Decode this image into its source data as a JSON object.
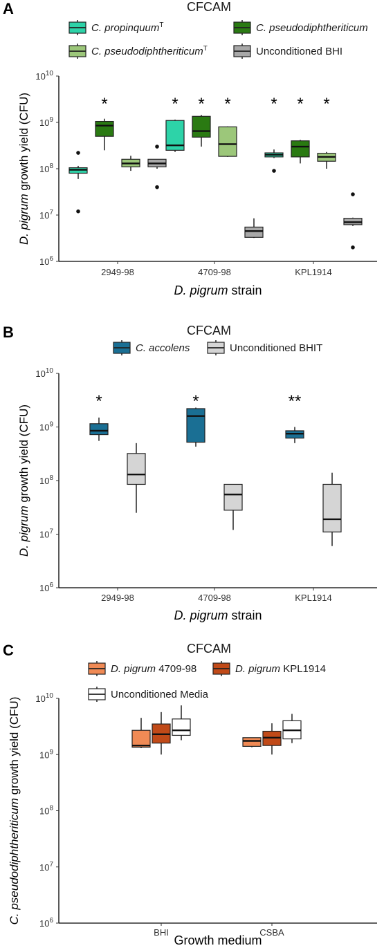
{
  "chart_data": [
    {
      "panel": "A",
      "type": "box",
      "legend_title": "CFCAM",
      "legend": [
        {
          "name": "C. propinquum",
          "italic": "C. propinquum",
          "plain": "",
          "sup": "T",
          "color": "#2dd3a8"
        },
        {
          "name": "C. pseudodiphtheriticum",
          "italic": "C. pseudodiphtheriticum",
          "plain": "",
          "sup": "",
          "color": "#2a7a12"
        },
        {
          "name": "C. pseudodiphtheriticum",
          "italic": "C. pseudodiphtheriticum",
          "plain": "",
          "sup": "T",
          "color": "#9cc77a"
        },
        {
          "name": "Unconditioned BHI",
          "italic": "",
          "plain": "Unconditioned BHI",
          "sup": "",
          "color": "#a8a8a8"
        }
      ],
      "y_scale": "log10",
      "ylim": [
        1000000,
        10000000000
      ],
      "y_ticks": [
        {
          "base": "10",
          "exp": "10"
        },
        {
          "base": "10",
          "exp": "9"
        },
        {
          "base": "10",
          "exp": "8"
        },
        {
          "base": "10",
          "exp": "7"
        },
        {
          "base": "10",
          "exp": "6"
        }
      ],
      "ylabel_italic": "D. pigrum",
      "ylabel_plain": " growth yield (CFU)",
      "xlabel_italic": "D. pigrum",
      "xlabel_plain": " strain",
      "categories": [
        "2949-98",
        "4709-98",
        "KPL1914"
      ],
      "boxes": [
        [
          {
            "color": "#2dd3a8",
            "lw": 60000000,
            "q1": 80000000,
            "med": 95000000,
            "q3": 105000000,
            "hw": 115000000,
            "outliers": [
              12000000,
              220000000
            ]
          },
          {
            "color": "#2a7a12",
            "lw": 250000000,
            "q1": 500000000,
            "med": 850000000,
            "q3": 1050000000,
            "hw": 1200000000,
            "outliers": []
          },
          {
            "color": "#9cc77a",
            "lw": 90000000,
            "q1": 110000000,
            "med": 130000000,
            "q3": 160000000,
            "hw": 190000000,
            "outliers": []
          },
          {
            "color": "#a8a8a8",
            "lw": 100000000,
            "q1": 110000000,
            "med": 130000000,
            "q3": 160000000,
            "hw": 160000000,
            "outliers": [
              40000000,
              300000000
            ]
          }
        ],
        [
          {
            "color": "#2dd3a8",
            "lw": 230000000,
            "q1": 250000000,
            "med": 320000000,
            "q3": 1100000000,
            "hw": 1150000000,
            "outliers": []
          },
          {
            "color": "#2a7a12",
            "lw": 300000000,
            "q1": 480000000,
            "med": 650000000,
            "q3": 1350000000,
            "hw": 1450000000,
            "outliers": []
          },
          {
            "color": "#9cc77a",
            "lw": 180000000,
            "q1": 185000000,
            "med": 340000000,
            "q3": 800000000,
            "hw": 820000000,
            "outliers": []
          },
          {
            "color": "#a8a8a8",
            "lw": 3200000,
            "q1": 3300000,
            "med": 4500000,
            "q3": 5500000,
            "hw": 8500000,
            "outliers": []
          }
        ],
        [
          {
            "color": "#2dd3a8",
            "lw": 170000000,
            "q1": 180000000,
            "med": 200000000,
            "q3": 220000000,
            "hw": 260000000,
            "outliers": [
              90000000
            ]
          },
          {
            "color": "#2a7a12",
            "lw": 130000000,
            "q1": 180000000,
            "med": 300000000,
            "q3": 400000000,
            "hw": 420000000,
            "outliers": []
          },
          {
            "color": "#9cc77a",
            "lw": 100000000,
            "q1": 145000000,
            "med": 180000000,
            "q3": 215000000,
            "hw": 230000000,
            "outliers": []
          },
          {
            "color": "#a8a8a8",
            "lw": 5800000,
            "q1": 6200000,
            "med": 7000000,
            "q3": 8500000,
            "hw": 8800000,
            "outliers": [
              2000000,
              28000000
            ]
          }
        ]
      ],
      "stars": [
        {
          "label": "*",
          "cat": 0,
          "box": 1
        },
        {
          "label": "*",
          "cat": 1,
          "box": 0
        },
        {
          "label": "*",
          "cat": 1,
          "box": 1
        },
        {
          "label": "*",
          "cat": 1,
          "box": 2
        },
        {
          "label": "*",
          "cat": 2,
          "box": 0
        },
        {
          "label": "*",
          "cat": 2,
          "box": 1
        },
        {
          "label": "*",
          "cat": 2,
          "box": 2
        }
      ]
    },
    {
      "panel": "B",
      "type": "box",
      "legend_title": "CFCAM",
      "legend": [
        {
          "name": "C. accolens",
          "italic": "C. accolens",
          "plain": "",
          "sup": "",
          "color": "#1a6f94"
        },
        {
          "name": "Unconditioned BHIT",
          "italic": "",
          "plain": "Unconditioned BHIT",
          "sup": "",
          "color": "#d5d5d5"
        }
      ],
      "y_scale": "log10",
      "ylim": [
        1000000,
        10000000000
      ],
      "y_ticks": [
        {
          "base": "10",
          "exp": "10"
        },
        {
          "base": "10",
          "exp": "9"
        },
        {
          "base": "10",
          "exp": "8"
        },
        {
          "base": "10",
          "exp": "7"
        },
        {
          "base": "10",
          "exp": "6"
        }
      ],
      "ylabel_italic": "D. pigrum",
      "ylabel_plain": " growth yield (CFU)",
      "xlabel_italic": "D. pigrum",
      "xlabel_plain": " strain",
      "categories": [
        "2949-98",
        "4709-98",
        "KPL1914"
      ],
      "boxes": [
        [
          {
            "color": "#1a6f94",
            "lw": 550000000,
            "q1": 720000000,
            "med": 850000000,
            "q3": 1150000000,
            "hw": 1500000000,
            "outliers": []
          },
          {
            "color": "#d5d5d5",
            "lw": 25000000,
            "q1": 85000000,
            "med": 130000000,
            "q3": 320000000,
            "hw": 500000000,
            "outliers": []
          }
        ],
        [
          {
            "color": "#1a6f94",
            "lw": 430000000,
            "q1": 520000000,
            "med": 1600000000,
            "q3": 2200000000,
            "hw": 2300000000,
            "outliers": []
          },
          {
            "color": "#d5d5d5",
            "lw": 12000000,
            "q1": 28000000,
            "med": 55000000,
            "q3": 85000000,
            "hw": 85000000,
            "outliers": []
          }
        ],
        [
          {
            "color": "#1a6f94",
            "lw": 500000000,
            "q1": 620000000,
            "med": 750000000,
            "q3": 850000000,
            "hw": 1000000000,
            "outliers": []
          },
          {
            "color": "#d5d5d5",
            "lw": 6000000,
            "q1": 11000000,
            "med": 19000000,
            "q3": 85000000,
            "hw": 140000000,
            "outliers": []
          }
        ]
      ],
      "stars": [
        {
          "label": "*",
          "cat": 0,
          "box": 0
        },
        {
          "label": "*",
          "cat": 1,
          "box": 0
        },
        {
          "label": "**",
          "cat": 2,
          "box": 0
        }
      ]
    },
    {
      "panel": "C",
      "type": "box",
      "legend_title": "CFCAM",
      "legend": [
        {
          "name": "D. pigrum 4709-98",
          "italic": "D. pigrum",
          "plain": " 4709-98",
          "sup": "",
          "color": "#f08a55"
        },
        {
          "name": "D. pigrum KPL1914",
          "italic": "D. pigrum",
          "plain": " KPL1914",
          "sup": "",
          "color": "#c14a18"
        },
        {
          "name": "Unconditioned Media",
          "italic": "",
          "plain": "Unconditioned Media",
          "sup": "",
          "color": "#ffffff"
        }
      ],
      "y_scale": "log10",
      "ylim": [
        1000000,
        10000000000
      ],
      "y_ticks": [
        {
          "base": "10",
          "exp": "10"
        },
        {
          "base": "10",
          "exp": "9"
        },
        {
          "base": "10",
          "exp": "8"
        },
        {
          "base": "10",
          "exp": "7"
        },
        {
          "base": "10",
          "exp": "6"
        }
      ],
      "ylabel_italic": "C. pseudodiphtheriticum",
      "ylabel_plain": " growth yield (CFU)",
      "xlabel_italic": "",
      "xlabel_plain": "Growth medium",
      "categories": [
        "BHI",
        "CSBA"
      ],
      "boxes": [
        [
          {
            "color": "#f08a55",
            "lw": 1300000000,
            "q1": 1350000000,
            "med": 1450000000,
            "q3": 2700000000,
            "hw": 4500000000,
            "outliers": []
          },
          {
            "color": "#c14a18",
            "lw": 1000000000,
            "q1": 1600000000,
            "med": 2300000000,
            "q3": 3500000000,
            "hw": 5700000000,
            "outliers": []
          },
          {
            "color": "#ffffff",
            "lw": 1800000000,
            "q1": 2200000000,
            "med": 2700000000,
            "q3": 4300000000,
            "hw": 7500000000,
            "outliers": []
          }
        ],
        [
          {
            "color": "#f08a55",
            "lw": 1350000000,
            "q1": 1400000000,
            "med": 1750000000,
            "q3": 2000000000,
            "hw": 2000000000,
            "outliers": []
          },
          {
            "color": "#c14a18",
            "lw": 1000000000,
            "q1": 1450000000,
            "med": 2000000000,
            "q3": 2600000000,
            "hw": 3600000000,
            "outliers": []
          },
          {
            "color": "#ffffff",
            "lw": 1600000000,
            "q1": 1900000000,
            "med": 2700000000,
            "q3": 4000000000,
            "hw": 5300000000,
            "outliers": []
          }
        ]
      ],
      "stars": []
    }
  ]
}
